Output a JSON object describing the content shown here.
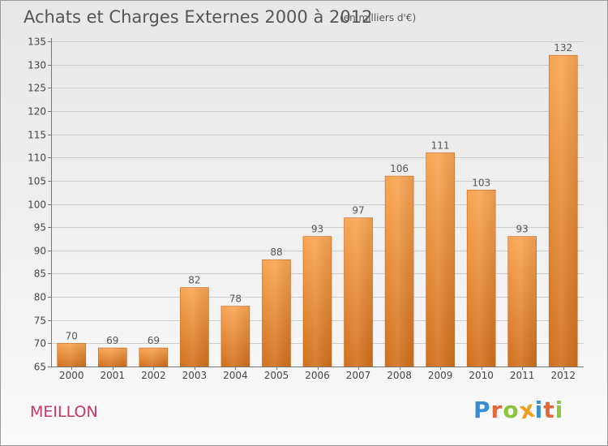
{
  "header": {
    "title": "Achats et Charges Externes 2000 à 2012",
    "subtitle": "(en milliers d'€)"
  },
  "footer": {
    "commune": "MEILLON",
    "brand_letters": [
      {
        "ch": "P",
        "color": "#3a8ed0"
      },
      {
        "ch": "r",
        "color": "#e2673a"
      },
      {
        "ch": "o",
        "color": "#8cc63f"
      },
      {
        "ch": "x",
        "color": "#f0a020"
      },
      {
        "ch": "i",
        "color": "#3a8ed0"
      },
      {
        "ch": "t",
        "color": "#e2673a"
      },
      {
        "ch": "i",
        "color": "#8cc63f"
      }
    ]
  },
  "colors": {
    "bar_top": "#f9a552",
    "bar_bottom": "#d1701c",
    "axis": "#777777",
    "grid": "#cccccc",
    "commune_text": "#c5346b"
  },
  "chart_data": {
    "type": "bar",
    "categories": [
      "2000",
      "2001",
      "2002",
      "2003",
      "2004",
      "2005",
      "2006",
      "2007",
      "2008",
      "2009",
      "2010",
      "2011",
      "2012"
    ],
    "values": [
      70,
      69,
      69,
      82,
      78,
      88,
      93,
      97,
      106,
      111,
      103,
      93,
      132
    ],
    "title": "Achats et Charges Externes 2000 à 2012",
    "ylim": [
      65,
      135
    ],
    "yticks": [
      65,
      70,
      75,
      80,
      85,
      90,
      95,
      100,
      105,
      110,
      115,
      120,
      125,
      130,
      135
    ],
    "grid": true,
    "data_labels": true
  }
}
